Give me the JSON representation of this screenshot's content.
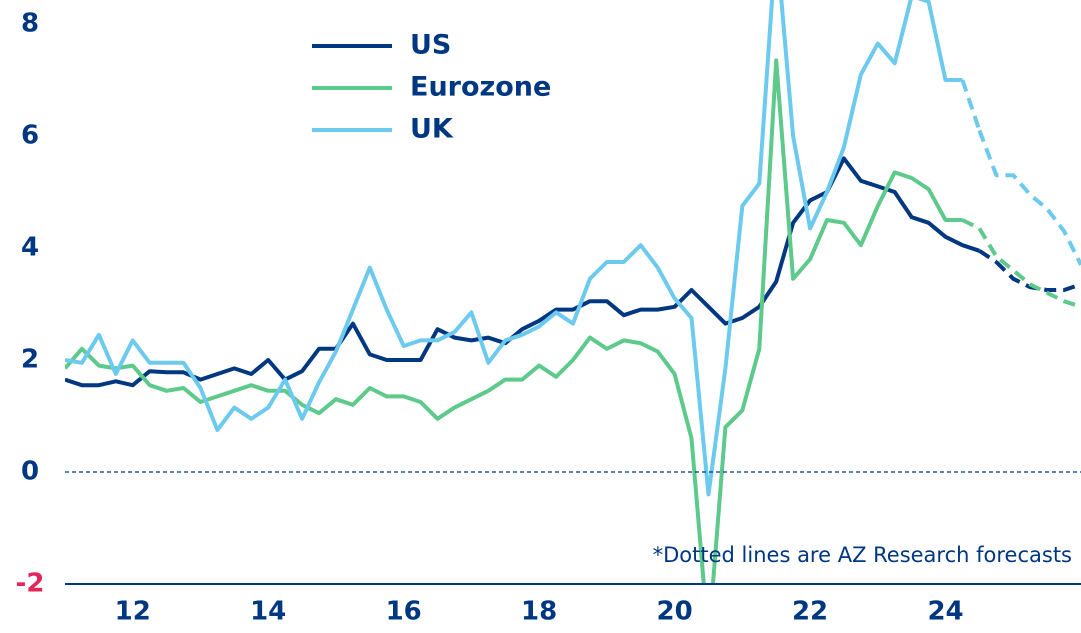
{
  "chart_data": {
    "type": "line",
    "annotation": "*Dotted lines are AZ Research forecasts",
    "x": [
      11,
      11.25,
      11.5,
      11.75,
      12,
      12.25,
      12.5,
      12.75,
      13,
      13.25,
      13.5,
      13.75,
      14,
      14.25,
      14.5,
      14.75,
      15,
      15.25,
      15.5,
      15.75,
      16,
      16.25,
      16.5,
      16.75,
      17,
      17.25,
      17.5,
      17.75,
      18,
      18.25,
      18.5,
      18.75,
      19,
      19.25,
      19.5,
      19.75,
      20,
      20.25,
      20.5,
      20.75,
      21,
      21.25,
      21.5,
      21.75,
      22,
      22.25,
      22.5,
      22.75,
      23,
      23.25,
      23.5,
      23.75,
      24,
      24.25,
      24.5,
      24.75,
      25,
      25.25,
      25.5,
      25.75,
      26
    ],
    "series": [
      {
        "name": "US",
        "color": "#003781",
        "values": [
          1.65,
          1.55,
          1.55,
          1.62,
          1.55,
          1.8,
          1.78,
          1.78,
          1.65,
          1.75,
          1.85,
          1.75,
          2.0,
          1.65,
          1.8,
          2.2,
          2.2,
          2.65,
          2.1,
          2.0,
          2.0,
          2.0,
          2.55,
          2.4,
          2.35,
          2.4,
          2.3,
          2.55,
          2.7,
          2.9,
          2.9,
          3.05,
          3.05,
          2.8,
          2.9,
          2.9,
          2.95,
          3.25,
          2.95,
          2.65,
          2.75,
          2.95,
          3.4,
          4.45,
          4.85,
          5.0,
          5.6,
          5.2,
          5.1,
          5.0,
          4.55,
          4.45,
          4.2,
          4.05,
          3.95,
          null,
          null,
          null,
          null,
          null,
          null
        ],
        "forecast": [
          null,
          null,
          null,
          null,
          null,
          null,
          null,
          null,
          null,
          null,
          null,
          null,
          null,
          null,
          null,
          null,
          null,
          null,
          null,
          null,
          null,
          null,
          null,
          null,
          null,
          null,
          null,
          null,
          null,
          null,
          null,
          null,
          null,
          null,
          null,
          null,
          null,
          null,
          null,
          null,
          null,
          null,
          null,
          null,
          null,
          null,
          null,
          null,
          null,
          null,
          null,
          null,
          null,
          null,
          null,
          3.75,
          3.45,
          3.3,
          3.25,
          3.25,
          3.35
        ]
      },
      {
        "name": "Eurozone",
        "color": "#5dc98b",
        "values": [
          1.85,
          2.2,
          1.9,
          1.85,
          1.9,
          1.55,
          1.45,
          1.5,
          1.25,
          1.35,
          1.45,
          1.55,
          1.45,
          1.45,
          1.2,
          1.05,
          1.3,
          1.2,
          1.5,
          1.35,
          1.35,
          1.25,
          0.95,
          1.15,
          1.3,
          1.45,
          1.65,
          1.65,
          1.9,
          1.7,
          2.0,
          2.4,
          2.2,
          2.35,
          2.3,
          2.15,
          1.75,
          0.6,
          -3.0,
          0.8,
          1.1,
          2.2,
          7.35,
          3.45,
          3.8,
          4.5,
          4.45,
          4.05,
          4.75,
          5.35,
          5.25,
          5.05,
          4.5,
          4.5,
          null,
          null,
          null,
          null,
          null,
          null,
          null
        ],
        "forecast": [
          null,
          null,
          null,
          null,
          null,
          null,
          null,
          null,
          null,
          null,
          null,
          null,
          null,
          null,
          null,
          null,
          null,
          null,
          null,
          null,
          null,
          null,
          null,
          null,
          null,
          null,
          null,
          null,
          null,
          null,
          null,
          null,
          null,
          null,
          null,
          null,
          null,
          null,
          null,
          null,
          null,
          null,
          null,
          null,
          null,
          null,
          null,
          null,
          null,
          null,
          null,
          null,
          null,
          null,
          4.35,
          3.85,
          3.6,
          3.35,
          3.2,
          3.05,
          2.95
        ]
      },
      {
        "name": "UK",
        "color": "#6ccaef",
        "values": [
          2.0,
          1.95,
          2.45,
          1.75,
          2.35,
          1.95,
          1.95,
          1.95,
          1.5,
          0.75,
          1.15,
          0.95,
          1.15,
          1.65,
          0.95,
          1.6,
          2.15,
          2.9,
          3.65,
          2.9,
          2.25,
          2.35,
          2.35,
          2.5,
          2.85,
          1.95,
          2.35,
          2.45,
          2.6,
          2.85,
          2.65,
          3.45,
          3.75,
          3.75,
          4.05,
          3.65,
          3.1,
          2.75,
          -0.4,
          1.85,
          4.75,
          5.15,
          9.5,
          6.0,
          4.35,
          5.0,
          5.8,
          7.1,
          7.65,
          7.3,
          8.5,
          8.4,
          7.0,
          7.0,
          null,
          null,
          null,
          null,
          null,
          null,
          null
        ],
        "forecast": [
          null,
          null,
          null,
          null,
          null,
          null,
          null,
          null,
          null,
          null,
          null,
          null,
          null,
          null,
          null,
          null,
          null,
          null,
          null,
          null,
          null,
          null,
          null,
          null,
          null,
          null,
          null,
          null,
          null,
          null,
          null,
          null,
          null,
          null,
          null,
          null,
          null,
          null,
          null,
          null,
          null,
          null,
          null,
          null,
          null,
          null,
          null,
          null,
          null,
          null,
          null,
          null,
          null,
          null,
          6.1,
          5.3,
          5.3,
          4.95,
          4.7,
          4.3,
          3.7
        ]
      }
    ],
    "xlim": [
      11,
      26
    ],
    "xticks": [
      12,
      14,
      16,
      18,
      20,
      22,
      24
    ],
    "ylim": [
      -2,
      8
    ],
    "yticks": [
      -2,
      0,
      2,
      4,
      6,
      8
    ],
    "negative_tick_color": "#e5245a",
    "zero_line": true
  }
}
